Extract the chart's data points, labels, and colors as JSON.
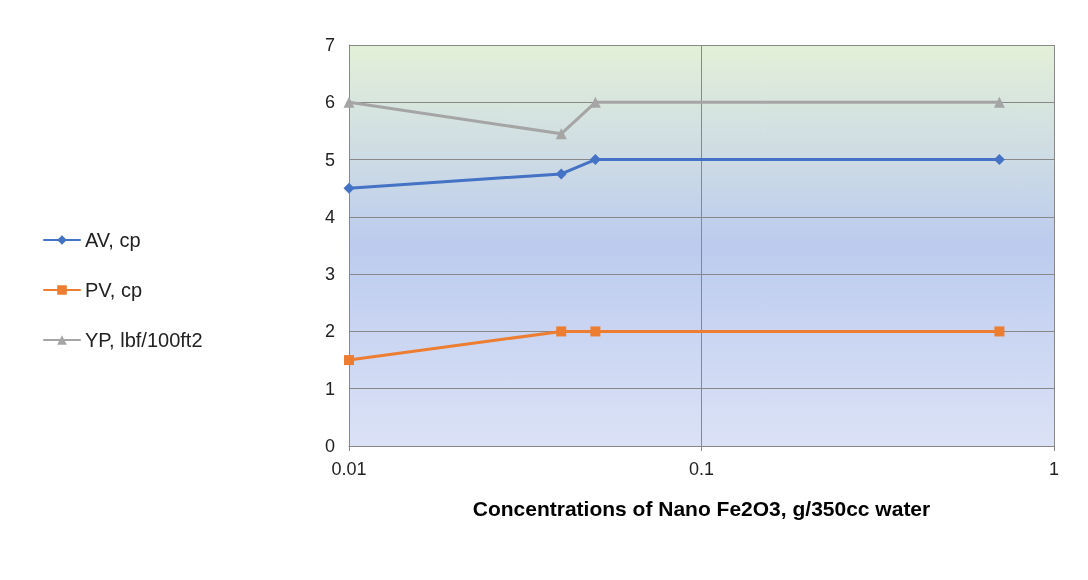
{
  "chart_data": {
    "type": "line",
    "xlabel": "Concentrations of Nano Fe2O3, g/350cc water",
    "x": [
      0.01,
      0.04,
      0.05,
      0.7
    ],
    "series": [
      {
        "name": "AV, cp",
        "color": "#4472c4",
        "marker": "diamond",
        "values": [
          4.5,
          4.75,
          5,
          5
        ]
      },
      {
        "name": "PV, cp",
        "color": "#ed7d31",
        "marker": "square",
        "values": [
          1.5,
          2,
          2,
          2
        ]
      },
      {
        "name": "YP, lbf/100ft2",
        "color": "#a5a5a5",
        "marker": "triangle",
        "values": [
          6,
          5.45,
          6,
          6
        ]
      }
    ],
    "log": "x",
    "xlim": [
      0.01,
      1
    ],
    "xticks": [
      0.01,
      0.1,
      1
    ],
    "ylim": [
      0,
      7
    ],
    "yticks": [
      0,
      1,
      2,
      3,
      4,
      5,
      6,
      7
    ],
    "grid": true,
    "legend": "left",
    "line_style": "solid"
  }
}
